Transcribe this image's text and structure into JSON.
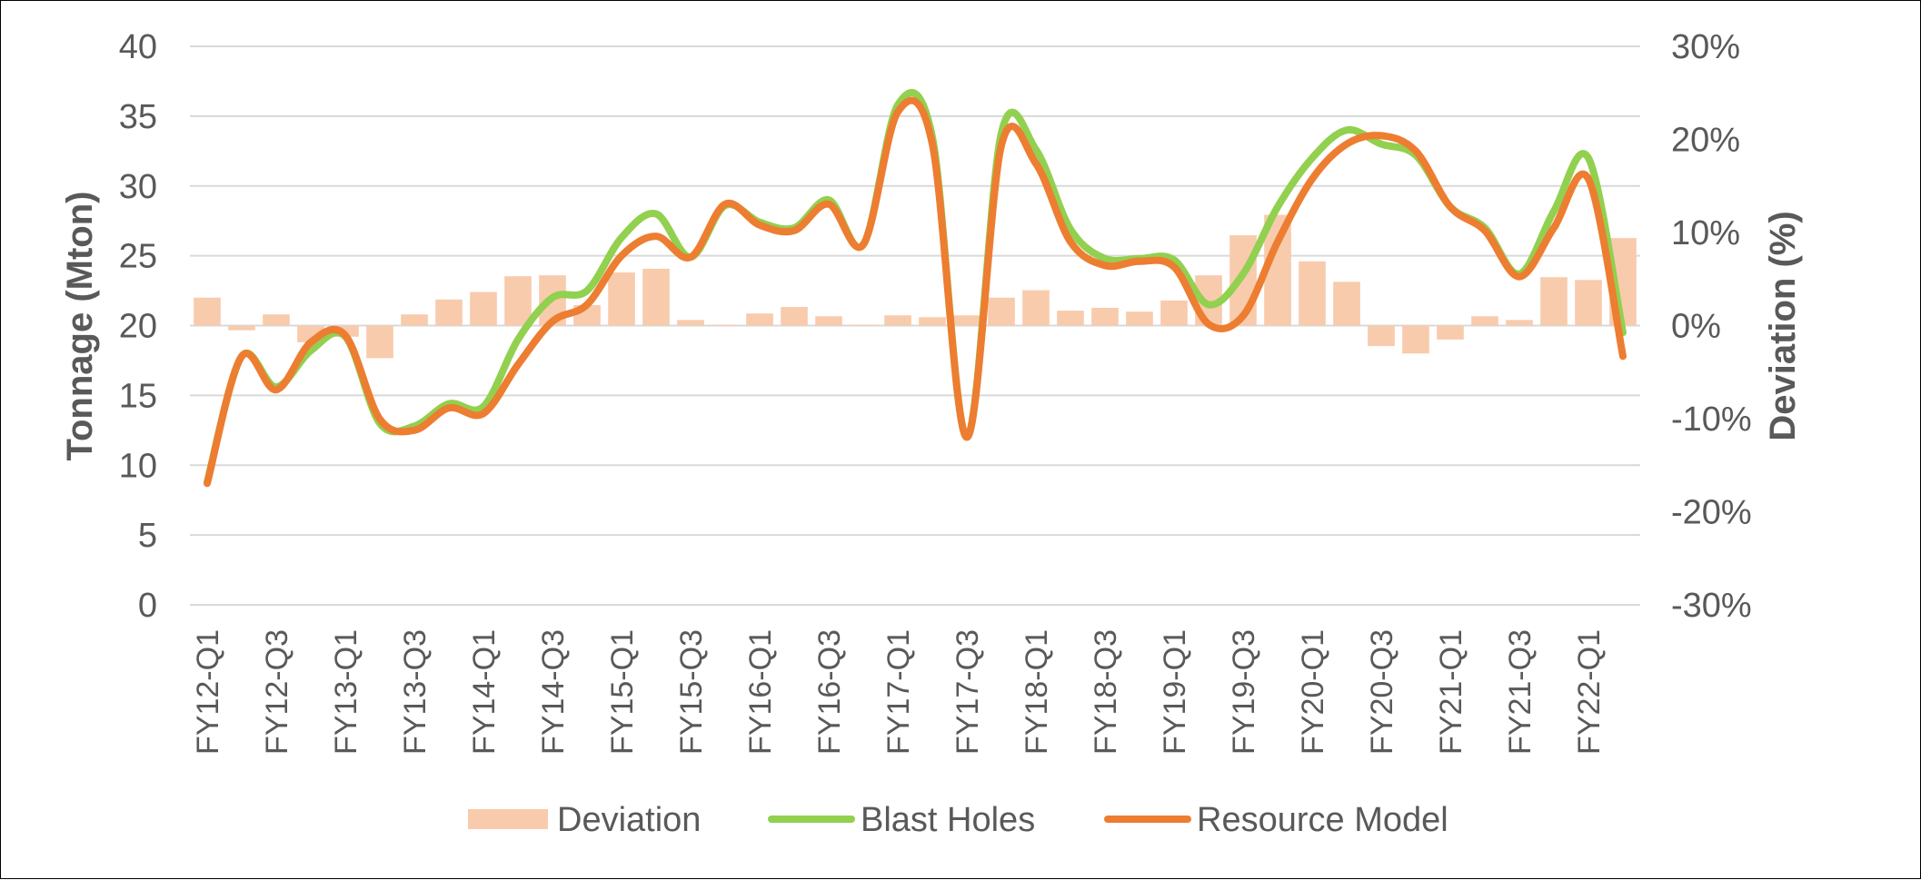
{
  "chart_data": {
    "type": "bar+line",
    "title": "",
    "y_left": {
      "label": "Tonnage (Mton)",
      "lim": [
        0,
        40
      ],
      "ticks": [
        "0",
        "5",
        "10",
        "15",
        "20",
        "25",
        "30",
        "35",
        "40"
      ]
    },
    "y_right": {
      "label": "Deviation (%)",
      "lim": [
        -30,
        30
      ],
      "ticks": [
        "-30%",
        "-20%",
        "-10%",
        "0%",
        "10%",
        "20%",
        "30%"
      ]
    },
    "categories": [
      "FY12-Q1",
      "FY12-Q2",
      "FY12-Q3",
      "FY12-Q4",
      "FY13-Q1",
      "FY13-Q2",
      "FY13-Q3",
      "FY13-Q4",
      "FY14-Q1",
      "FY14-Q2",
      "FY14-Q3",
      "FY14-Q4",
      "FY15-Q1",
      "FY15-Q2",
      "FY15-Q3",
      "FY15-Q4",
      "FY16-Q1",
      "FY16-Q2",
      "FY16-Q3",
      "FY16-Q4",
      "FY17-Q1",
      "FY17-Q2",
      "FY17-Q3",
      "FY17-Q4",
      "FY18-Q1",
      "FY18-Q2",
      "FY18-Q3",
      "FY18-Q4",
      "FY19-Q1",
      "FY19-Q2",
      "FY19-Q3",
      "FY19-Q4",
      "FY20-Q1",
      "FY20-Q2",
      "FY20-Q3",
      "FY20-Q4",
      "FY21-Q1",
      "FY21-Q2",
      "FY21-Q3",
      "FY21-Q4",
      "FY22-Q1",
      "FY22-Q2"
    ],
    "x_tick_labels": [
      "FY12-Q1",
      "FY12-Q3",
      "FY13-Q1",
      "FY13-Q3",
      "FY14-Q1",
      "FY14-Q3",
      "FY15-Q1",
      "FY15-Q3",
      "FY16-Q1",
      "FY16-Q3",
      "FY17-Q1",
      "FY17-Q3",
      "FY18-Q1",
      "FY18-Q3",
      "FY19-Q1",
      "FY19-Q3",
      "FY20-Q1",
      "FY20-Q3",
      "FY21-Q1",
      "FY21-Q3",
      "FY22-Q1"
    ],
    "series": [
      {
        "name": "Deviation",
        "type": "bar",
        "axis": "right",
        "color": "#F8CBAD",
        "values": [
          3.0,
          -0.5,
          1.2,
          -1.8,
          -1.2,
          -3.5,
          1.2,
          2.8,
          3.6,
          5.3,
          5.4,
          2.2,
          5.7,
          6.1,
          0.6,
          0.1,
          1.3,
          2.0,
          1.0,
          0.1,
          1.1,
          0.9,
          1.1,
          3.0,
          3.8,
          1.6,
          1.9,
          1.5,
          2.7,
          5.4,
          9.7,
          11.9,
          6.9,
          4.7,
          -2.2,
          -3.0,
          -1.5,
          1.0,
          0.6,
          5.2,
          4.9,
          9.4
        ]
      },
      {
        "name": "Blast Holes",
        "type": "line",
        "axis": "left",
        "color": "#92D050",
        "values": [
          8.8,
          17.8,
          15.6,
          18.2,
          19.2,
          13.0,
          12.8,
          14.4,
          14.2,
          19.0,
          22.0,
          22.5,
          26.3,
          28.0,
          24.9,
          28.6,
          27.4,
          27.0,
          29.0,
          25.8,
          35.8,
          33.5,
          12.0,
          33.8,
          32.6,
          26.9,
          24.8,
          24.8,
          24.7,
          21.5,
          23.7,
          28.5,
          32.0,
          34.0,
          33.0,
          32.2,
          28.5,
          27.0,
          23.7,
          28.2,
          32.0,
          19.5
        ]
      },
      {
        "name": "Resource Model",
        "type": "line",
        "axis": "left",
        "color": "#ED7D31",
        "values": [
          8.7,
          17.8,
          15.4,
          18.8,
          19.3,
          13.3,
          12.5,
          14.1,
          13.7,
          17.2,
          20.3,
          21.5,
          25.0,
          26.4,
          24.9,
          28.7,
          27.2,
          26.8,
          28.7,
          25.8,
          35.3,
          33.0,
          12.0,
          32.9,
          31.6,
          26.0,
          24.3,
          24.6,
          24.2,
          20.1,
          20.7,
          26.0,
          30.5,
          33.0,
          33.6,
          32.5,
          28.5,
          26.8,
          23.5,
          27.0,
          30.5,
          17.8
        ]
      }
    ],
    "grid": true,
    "legend": {
      "position": "bottom",
      "entries": [
        "Deviation",
        "Blast Holes",
        "Resource Model"
      ]
    }
  }
}
